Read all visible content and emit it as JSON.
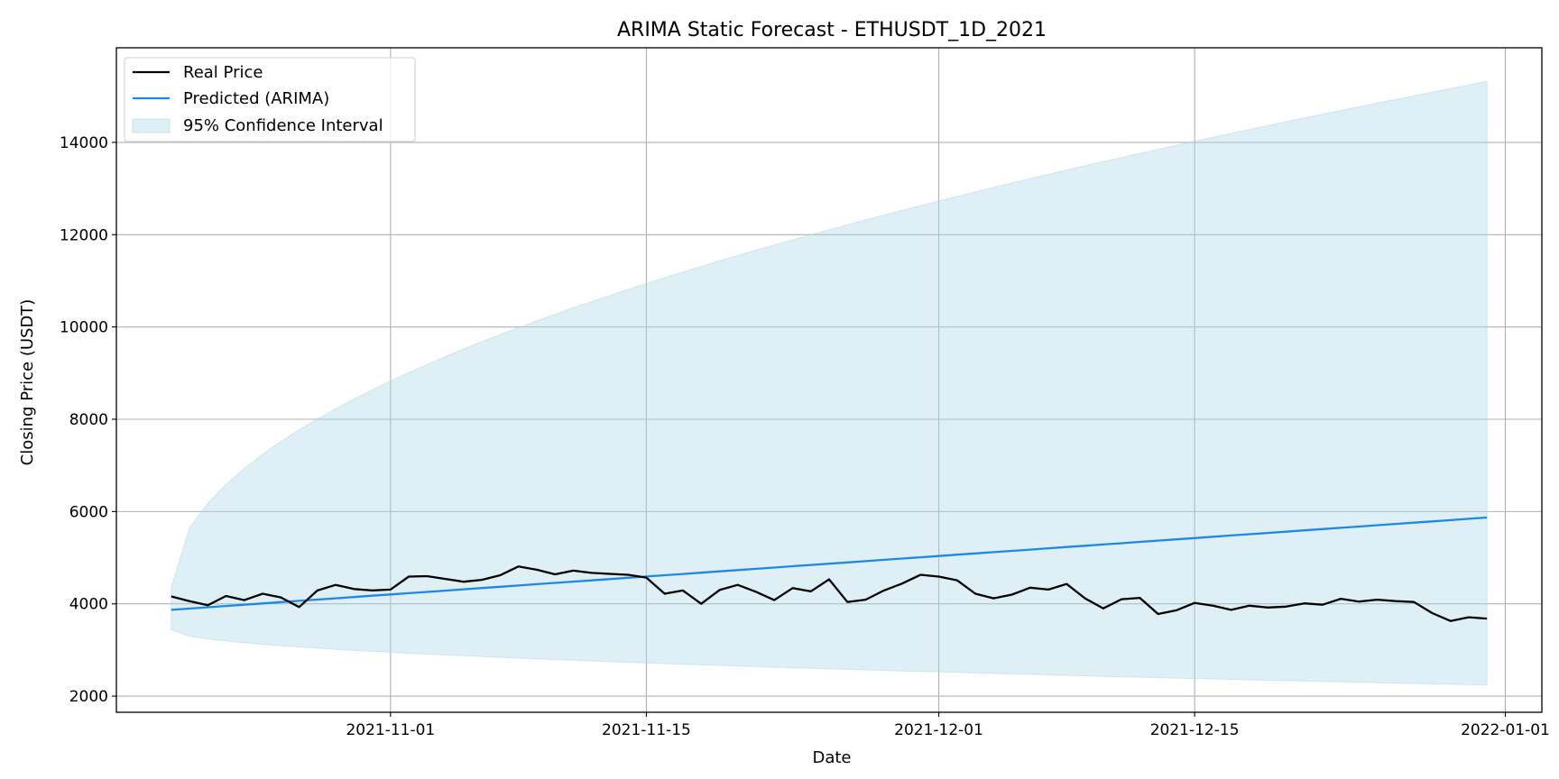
{
  "chart_data": {
    "type": "line",
    "title": "ARIMA Static Forecast - ETHUSDT_1D_2021",
    "xlabel": "Date",
    "ylabel": "Closing Price (USDT)",
    "xlim": [
      "2021-10-17",
      "2022-01-03"
    ],
    "ylim": [
      1650,
      16050
    ],
    "x_ticks": [
      "2021-11-01",
      "2021-11-15",
      "2021-12-01",
      "2021-12-15",
      "2022-01-01"
    ],
    "y_ticks": [
      2000,
      4000,
      6000,
      8000,
      10000,
      12000,
      14000
    ],
    "grid": true,
    "legend_position": "top-left",
    "legend": [
      "Real Price",
      "Predicted (ARIMA)",
      "95% Confidence Interval"
    ],
    "colors": {
      "real": "#000000",
      "predicted": "#1e88e5",
      "ci_fill": "#add8e6",
      "grid": "#b0b0b0"
    },
    "x_start": "2021-10-20",
    "x_step_days": 1,
    "series": [
      {
        "name": "Real Price",
        "values": [
          4160,
          4060,
          3970,
          4170,
          4080,
          4220,
          4140,
          3930,
          4290,
          4410,
          4320,
          4290,
          4310,
          4590,
          4600,
          4540,
          4480,
          4520,
          4620,
          4810,
          4740,
          4640,
          4720,
          4670,
          4650,
          4630,
          4570,
          4220,
          4290,
          4000,
          4300,
          4410,
          4260,
          4080,
          4340,
          4270,
          4530,
          4040,
          4090,
          4290,
          4440,
          4630,
          4590,
          4510,
          4220,
          4120,
          4200,
          4350,
          4310,
          4430,
          4120,
          3900,
          4100,
          4130,
          3780,
          3860,
          4020,
          3960,
          3870,
          3960,
          3920,
          3940,
          4010,
          3980,
          4110,
          4050,
          4090,
          4060,
          4040,
          3800,
          3630,
          3710,
          3680
        ]
      },
      {
        "name": "Predicted (ARIMA)",
        "start": 3870,
        "end": 5870
      },
      {
        "name": "95% Confidence Interval",
        "upper_start": 4350,
        "upper_end": 15320,
        "lower_start": 3440,
        "lower_end": 2240
      }
    ]
  }
}
